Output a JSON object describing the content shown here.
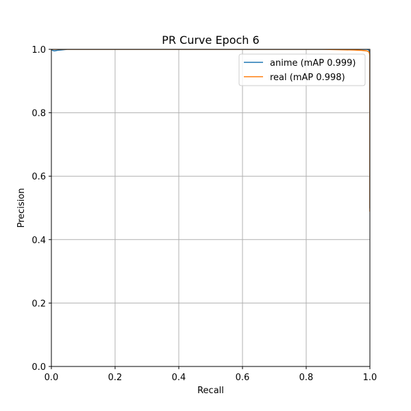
{
  "chart_data": {
    "type": "line",
    "title": "PR Curve Epoch 6",
    "xlabel": "Recall",
    "ylabel": "Precision",
    "xlim": [
      0,
      1
    ],
    "ylim": [
      0,
      1
    ],
    "xticks": [
      0,
      0.2,
      0.4,
      0.6,
      0.8,
      1
    ],
    "yticks": [
      0,
      0.2,
      0.4,
      0.6,
      0.8,
      1
    ],
    "xtick_labels": [
      "0.0",
      "0.2",
      "0.4",
      "0.6",
      "0.8",
      "1.0"
    ],
    "ytick_labels": [
      "0.0",
      "0.2",
      "0.4",
      "0.6",
      "0.8",
      "1.0"
    ],
    "grid": true,
    "legend_position": "top-right",
    "series": [
      {
        "name": "anime (mAP 0.999)",
        "color": "#1f77b4",
        "x": [
          0.0,
          0.005,
          0.01,
          0.02,
          0.03,
          0.04,
          0.05,
          0.1,
          0.3,
          0.5,
          0.7,
          0.9,
          0.99,
          0.995,
          0.998,
          1.0,
          1.0
        ],
        "y": [
          1.0,
          0.996,
          0.995,
          0.997,
          0.998,
          0.999,
          1.0,
          1.0,
          1.0,
          1.0,
          1.0,
          1.0,
          1.0,
          0.999,
          0.995,
          0.99,
          0.5
        ]
      },
      {
        "name": "real (mAP 0.998)",
        "color": "#ff7f0e",
        "x": [
          0.0,
          0.1,
          0.3,
          0.5,
          0.7,
          0.85,
          0.9,
          0.95,
          0.97,
          0.98,
          0.99,
          0.995,
          0.998,
          1.0,
          1.0
        ],
        "y": [
          1.0,
          1.0,
          1.0,
          1.0,
          1.0,
          1.0,
          0.999,
          0.998,
          0.997,
          0.996,
          0.995,
          0.993,
          0.99,
          0.98,
          0.49
        ]
      }
    ]
  }
}
